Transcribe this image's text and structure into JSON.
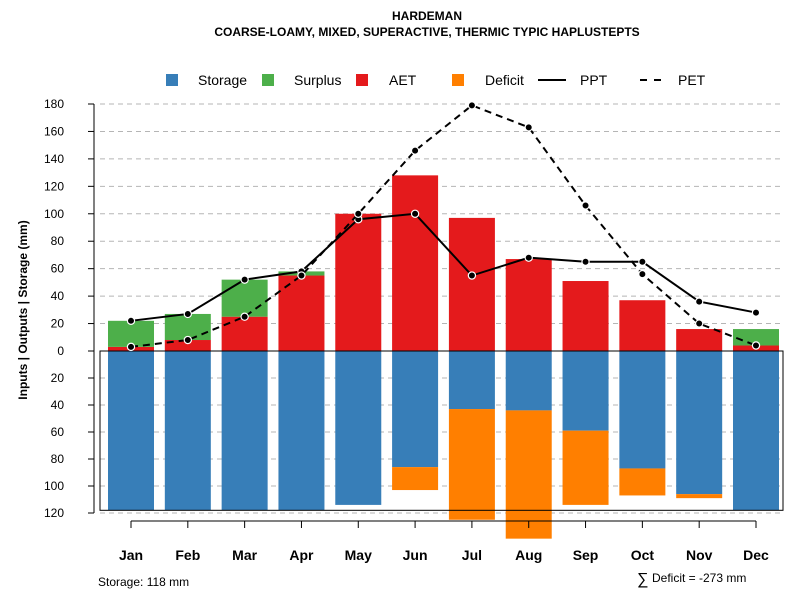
{
  "chart_data": {
    "type": "bar",
    "title": "HARDEMAN",
    "subtitle": "COARSE-LOAMY, MIXED, SUPERACTIVE, THERMIC TYPIC HAPLUSTEPTS",
    "ylabel": "Inputs | Outputs | Storage    (mm)",
    "xlabel": "",
    "categories": [
      "Jan",
      "Feb",
      "Mar",
      "Apr",
      "May",
      "Jun",
      "Jul",
      "Aug",
      "Sep",
      "Oct",
      "Nov",
      "Dec"
    ],
    "ylim_top": [
      0,
      180
    ],
    "ylim_bottom": [
      0,
      120
    ],
    "yticks_top": [
      "180",
      "160",
      "140",
      "120",
      "100",
      "80",
      "60",
      "40",
      "20",
      "0"
    ],
    "yticks_bottom": [
      "20",
      "40",
      "60",
      "80",
      "100",
      "120"
    ],
    "grid": true,
    "legend_position": "top",
    "legend": [
      {
        "label": "Storage",
        "kind": "square",
        "color": "#377EB8"
      },
      {
        "label": "Surplus",
        "kind": "square",
        "color": "#4DAF4A"
      },
      {
        "label": "AET",
        "kind": "square",
        "color": "#E41A1C"
      },
      {
        "label": "Deficit",
        "kind": "square",
        "color": "#FF7F00"
      },
      {
        "label": "PPT",
        "kind": "solid-line",
        "color": "#000000"
      },
      {
        "label": "PET",
        "kind": "dashed-line",
        "color": "#000000"
      }
    ],
    "series": [
      {
        "name": "AET",
        "color": "#E41A1C",
        "values": [
          3,
          8,
          25,
          55,
          100,
          128,
          97,
          67,
          51,
          37,
          16,
          4
        ]
      },
      {
        "name": "Surplus",
        "color": "#4DAF4A",
        "values": [
          19,
          19,
          27,
          3,
          0,
          0,
          0,
          0,
          0,
          0,
          0,
          12
        ]
      },
      {
        "name": "Storage",
        "color": "#377EB8",
        "values": [
          118,
          118,
          118,
          118,
          114,
          86,
          43,
          44,
          59,
          87,
          106,
          118
        ]
      },
      {
        "name": "Deficit",
        "color": "#FF7F00",
        "values": [
          0,
          0,
          0,
          0,
          0,
          17,
          82,
          95,
          55,
          20,
          3,
          0
        ]
      },
      {
        "name": "PPT",
        "color": "#000000",
        "values": [
          22,
          27,
          52,
          58,
          96,
          100,
          55,
          68,
          65,
          65,
          36,
          28
        ]
      },
      {
        "name": "PET",
        "color": "#000000",
        "values": [
          3,
          8,
          25,
          55,
          100,
          146,
          179,
          163,
          106,
          56,
          20,
          4
        ]
      }
    ],
    "annotations": {
      "storage": "Storage: 118 mm",
      "deficit_symbol": "∑",
      "deficit": "Deficit = -273 mm"
    }
  }
}
